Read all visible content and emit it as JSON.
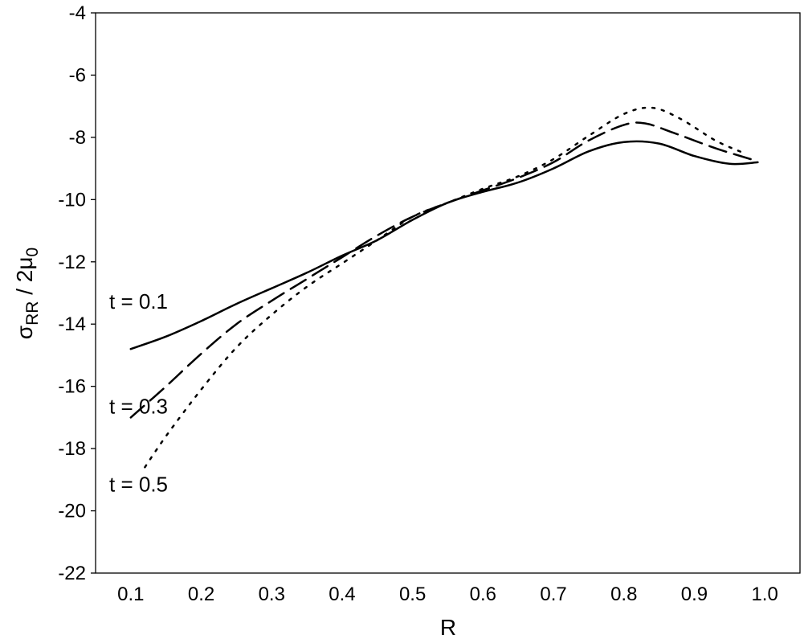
{
  "chart_data": {
    "type": "line",
    "xlabel": "R",
    "ylabel": {
      "sigma": "σ",
      "sigma_sub": "RR",
      "mid": " / 2",
      "mu": "μ",
      "mu_sub": "0"
    },
    "xlim": [
      0.05,
      1.05
    ],
    "ylim": [
      -22,
      -4
    ],
    "x_ticks": [
      "0.1",
      "0.2",
      "0.3",
      "0.4",
      "0.5",
      "0.6",
      "0.7",
      "0.8",
      "0.9",
      "1.0"
    ],
    "y_ticks": [
      "-4",
      "-6",
      "-8",
      "-10",
      "-12",
      "-14",
      "-16",
      "-18",
      "-20",
      "-22"
    ],
    "grid": false,
    "series": [
      {
        "name": "t = 0.1",
        "line_style": "solid",
        "color": "#000000",
        "points": [
          [
            0.1,
            -14.8
          ],
          [
            0.15,
            -14.4
          ],
          [
            0.2,
            -13.9
          ],
          [
            0.25,
            -13.35
          ],
          [
            0.3,
            -12.85
          ],
          [
            0.35,
            -12.35
          ],
          [
            0.4,
            -11.8
          ],
          [
            0.45,
            -11.3
          ],
          [
            0.5,
            -10.65
          ],
          [
            0.55,
            -10.1
          ],
          [
            0.6,
            -9.75
          ],
          [
            0.65,
            -9.45
          ],
          [
            0.7,
            -9.0
          ],
          [
            0.75,
            -8.45
          ],
          [
            0.8,
            -8.15
          ],
          [
            0.85,
            -8.2
          ],
          [
            0.9,
            -8.6
          ],
          [
            0.95,
            -8.85
          ],
          [
            0.99,
            -8.8
          ]
        ]
      },
      {
        "name": "t = 0.3",
        "line_style": "dashed",
        "color": "#000000",
        "points": [
          [
            0.1,
            -17.0
          ],
          [
            0.15,
            -16.0
          ],
          [
            0.2,
            -14.95
          ],
          [
            0.25,
            -14.0
          ],
          [
            0.3,
            -13.25
          ],
          [
            0.35,
            -12.55
          ],
          [
            0.4,
            -11.85
          ],
          [
            0.45,
            -11.15
          ],
          [
            0.5,
            -10.55
          ],
          [
            0.55,
            -10.1
          ],
          [
            0.6,
            -9.7
          ],
          [
            0.65,
            -9.3
          ],
          [
            0.7,
            -8.8
          ],
          [
            0.75,
            -8.1
          ],
          [
            0.8,
            -7.6
          ],
          [
            0.83,
            -7.55
          ],
          [
            0.87,
            -7.85
          ],
          [
            0.93,
            -8.35
          ],
          [
            0.98,
            -8.7
          ]
        ]
      },
      {
        "name": "t = 0.5",
        "line_style": "dotted",
        "color": "#000000",
        "points": [
          [
            0.12,
            -18.6
          ],
          [
            0.15,
            -17.6
          ],
          [
            0.2,
            -16.1
          ],
          [
            0.25,
            -14.75
          ],
          [
            0.3,
            -13.7
          ],
          [
            0.35,
            -12.8
          ],
          [
            0.4,
            -12.05
          ],
          [
            0.45,
            -11.3
          ],
          [
            0.5,
            -10.55
          ],
          [
            0.55,
            -10.1
          ],
          [
            0.6,
            -9.65
          ],
          [
            0.65,
            -9.25
          ],
          [
            0.7,
            -8.7
          ],
          [
            0.75,
            -7.95
          ],
          [
            0.8,
            -7.25
          ],
          [
            0.84,
            -7.05
          ],
          [
            0.88,
            -7.4
          ],
          [
            0.93,
            -8.1
          ],
          [
            0.97,
            -8.5
          ]
        ]
      }
    ]
  }
}
